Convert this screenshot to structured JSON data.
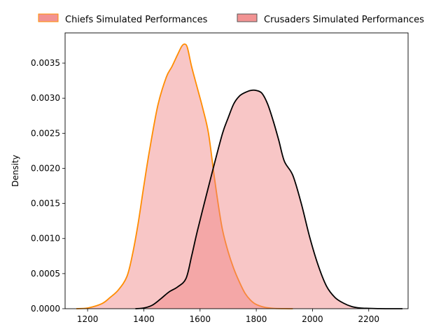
{
  "chart_data": {
    "type": "area",
    "title": "",
    "xlabel": "",
    "ylabel": "Density",
    "xlim": [
      1120,
      2340
    ],
    "ylim": [
      0,
      0.00393
    ],
    "x_ticks": [
      1200,
      1400,
      1600,
      1800,
      2000,
      2200
    ],
    "y_ticks": [
      0,
      0.0005,
      0.001,
      0.0015,
      0.002,
      0.0025,
      0.003,
      0.0035
    ],
    "x_tick_labels": [
      "1200",
      "1400",
      "1600",
      "1800",
      "2000",
      "2200"
    ],
    "y_tick_labels": [
      "0.0000",
      "0.0005",
      "0.0010",
      "0.0015",
      "0.0020",
      "0.0025",
      "0.0030",
      "0.0035"
    ],
    "grid": false,
    "legend_position": "top, above plot",
    "series": [
      {
        "name": "Chiefs Simulated Performances",
        "fill": "#f08080",
        "fill_opacity": 0.45,
        "line_color": "#ff8c00",
        "x": [
          1160,
          1200,
          1250,
          1280,
          1310,
          1340,
          1360,
          1380,
          1400,
          1420,
          1450,
          1480,
          1500,
          1520,
          1535,
          1545,
          1555,
          1570,
          1590,
          1610,
          1630,
          1650,
          1665,
          1680,
          1700,
          1720,
          1740,
          1760,
          1780,
          1800,
          1830,
          1860,
          1900,
          1930
        ],
        "y": [
          0.0,
          1e-05,
          7e-05,
          0.00016,
          0.00027,
          0.00046,
          0.00078,
          0.00122,
          0.00175,
          0.00225,
          0.0029,
          0.0033,
          0.00345,
          0.00362,
          0.00374,
          0.00377,
          0.00372,
          0.00345,
          0.00315,
          0.00285,
          0.0025,
          0.0019,
          0.00148,
          0.00112,
          0.00081,
          0.00057,
          0.00038,
          0.00022,
          0.00012,
          6e-05,
          2e-05,
          5e-06,
          1e-06,
          0.0
        ]
      },
      {
        "name": "Crusaders Simulated Performances",
        "fill": "#f08080",
        "fill_opacity": 0.45,
        "line_color": "#000000",
        "x": [
          1370,
          1400,
          1430,
          1460,
          1490,
          1520,
          1550,
          1570,
          1590,
          1620,
          1650,
          1680,
          1700,
          1720,
          1740,
          1760,
          1780,
          1800,
          1820,
          1840,
          1860,
          1880,
          1900,
          1930,
          1960,
          1990,
          2020,
          2050,
          2080,
          2110,
          2140,
          2170,
          2200,
          2240,
          2280,
          2320
        ],
        "y": [
          0.0,
          1e-05,
          5e-05,
          0.00014,
          0.00024,
          0.00031,
          0.00043,
          0.00075,
          0.0011,
          0.00158,
          0.00205,
          0.0025,
          0.00272,
          0.00292,
          0.00303,
          0.00308,
          0.00311,
          0.00311,
          0.00307,
          0.00292,
          0.00268,
          0.0024,
          0.0021,
          0.0019,
          0.0015,
          0.00102,
          0.00062,
          0.00032,
          0.00016,
          8e-05,
          3e-05,
          1e-05,
          5e-06,
          1e-06,
          0.0,
          0.0
        ]
      }
    ]
  }
}
